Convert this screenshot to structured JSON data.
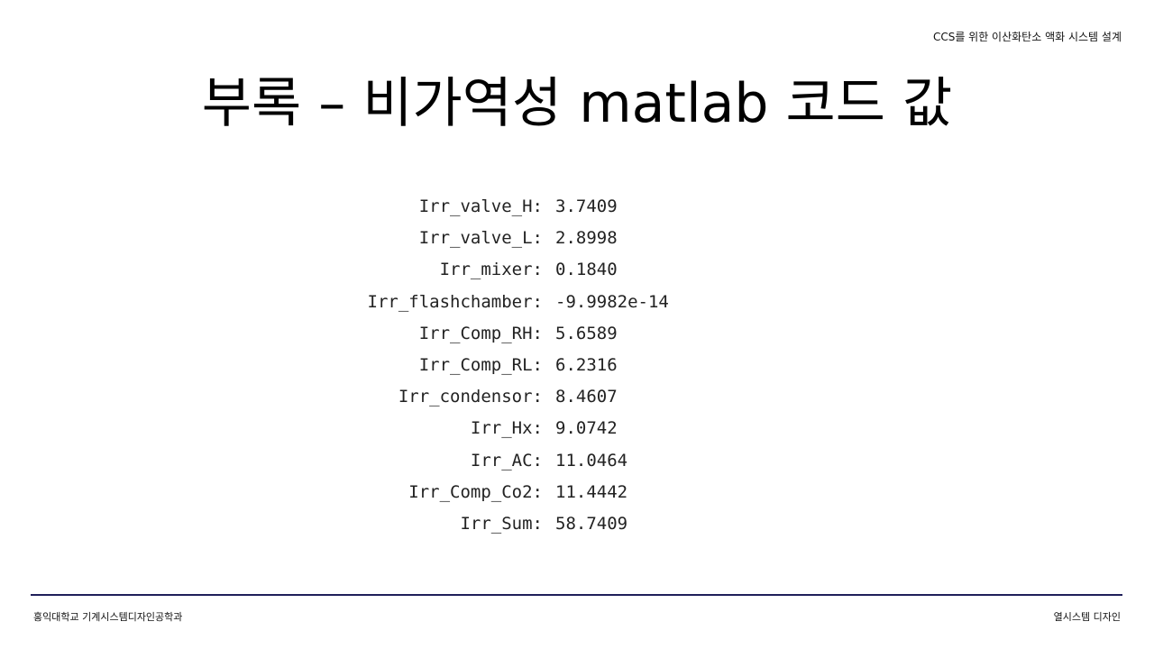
{
  "header": {
    "tag": "CCS를 위한 이산화탄소 액화 시스템 설계"
  },
  "title": "부록 – 비가역성 matlab 코드 값",
  "results": [
    {
      "name": "Irr_valve_H:",
      "value": "3.7409"
    },
    {
      "name": "Irr_valve_L:",
      "value": "2.8998"
    },
    {
      "name": "Irr_mixer:",
      "value": "0.1840"
    },
    {
      "name": "Irr_flashchamber:",
      "value": "-9.9982e-14"
    },
    {
      "name": "Irr_Comp_RH:",
      "value": "5.6589"
    },
    {
      "name": "Irr_Comp_RL:",
      "value": "6.2316"
    },
    {
      "name": "Irr_condensor:",
      "value": "8.4607"
    },
    {
      "name": "Irr_Hx:",
      "value": "9.0742"
    },
    {
      "name": "Irr_AC:",
      "value": "11.0464"
    },
    {
      "name": "Irr_Comp_Co2:",
      "value": "11.4442"
    },
    {
      "name": "Irr_Sum:",
      "value": "58.7409"
    }
  ],
  "footer": {
    "left": "홍익대학교 기계시스템디자인공학과",
    "right": "열시스템 디자인",
    "rule_color": "#1f1f5a"
  }
}
